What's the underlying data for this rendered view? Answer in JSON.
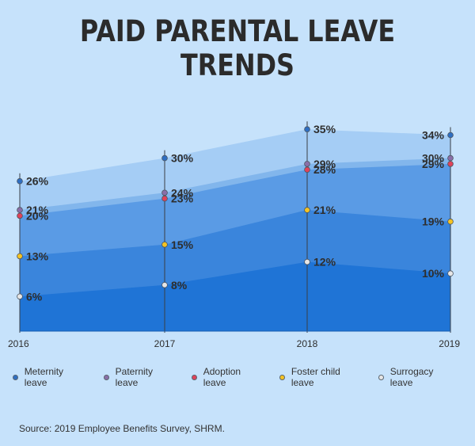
{
  "title": "PAID PARENTAL LEAVE TRENDS",
  "source": "Source: 2019 Employee Benefits Survey, SHRM.",
  "chart_data": {
    "type": "area",
    "x": [
      "2016",
      "2017",
      "2018",
      "2019"
    ],
    "ylim": [
      0,
      40
    ],
    "grid": false,
    "legend_position": "bottom",
    "series": [
      {
        "name": "Meternity leave",
        "values": [
          26,
          30,
          35,
          34
        ],
        "labels": [
          "26%",
          "30%",
          "35%",
          "34%"
        ],
        "color": "#2f6fc2",
        "fill": "#a5cdf5"
      },
      {
        "name": "Paternity leave",
        "values": [
          21,
          24,
          29,
          30
        ],
        "labels": [
          "21%",
          "24%",
          "29%",
          "30%"
        ],
        "color": "#8a6fa8",
        "fill": "#82b6ec"
      },
      {
        "name": "Adoption leave",
        "values": [
          20,
          23,
          28,
          29
        ],
        "labels": [
          "20%",
          "23%",
          "28%",
          "29%"
        ],
        "color": "#e0435a",
        "fill": "#5a9be5"
      },
      {
        "name": "Foster child leave",
        "values": [
          13,
          15,
          21,
          19
        ],
        "labels": [
          "13%",
          "15%",
          "21%",
          "19%"
        ],
        "color": "#f5c323",
        "fill": "#3a85dc"
      },
      {
        "name": "Surrogacy leave",
        "values": [
          6,
          8,
          12,
          10
        ],
        "labels": [
          "6%",
          "8%",
          "12%",
          "10%"
        ],
        "color": "#e6e6e6",
        "fill": "#1f74d6"
      }
    ]
  }
}
